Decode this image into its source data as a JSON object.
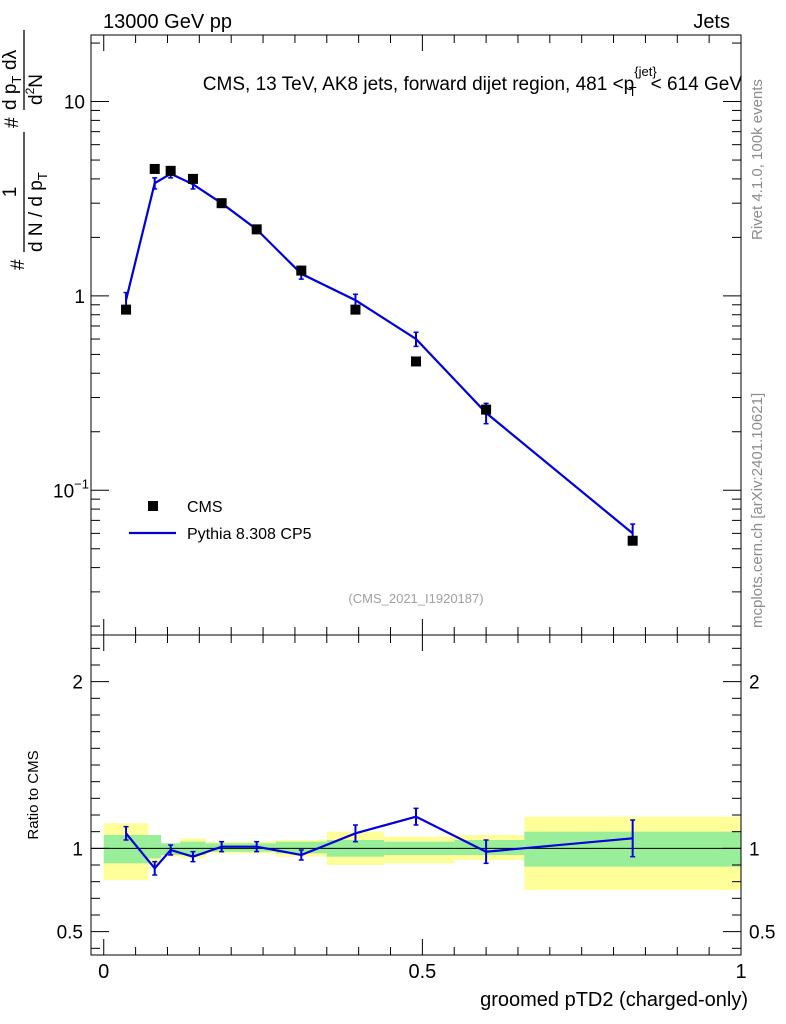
{
  "header": {
    "energy_label": "13000 GeV pp",
    "category_label": "Jets"
  },
  "side_text": {
    "rivet_label": "Rivet 4.1.0,  100k events",
    "mcplots_label": "mcplots.cern.ch [arXiv:2401.10621]"
  },
  "colors": {
    "mc_line": "#0000dd",
    "band_outer": "#ffff99",
    "band_inner": "#99ee99",
    "data_marker": "#000000"
  },
  "chart_data": [
    {
      "type": "scatter",
      "panel": "main",
      "title": "CMS, 13 TeV, AK8 jets, forward dijet region, 481 <p_T^{jet}< 614 GeV",
      "title_parts": {
        "before": "CMS, 13 TeV, AK8 jets, forward dijet region, 481 <p",
        "sup": "{jet}",
        "sub": "T",
        "after": "< 614 GeV"
      },
      "ylabel": "1/(dN/dp_T) d²N/(dp_T dλ)",
      "ylabel_parts": {
        "frac_num": "1",
        "frac_den": "d N / d p",
        "frac_den_sub": "T",
        "d2": "d",
        "d2_sup": "2",
        "d2_N": "N",
        "dp": "d p",
        "dp_sub": "T",
        "dlambda": "dλ",
        "hash": "#"
      },
      "yscale": "log",
      "ylim": [
        0.018,
        22
      ],
      "xlim": [
        -0.02,
        1.0
      ],
      "yticks": [
        {
          "value": 0.1,
          "label": "10",
          "sup": "−1"
        },
        {
          "value": 1,
          "label": "1"
        },
        {
          "value": 10,
          "label": "10"
        }
      ],
      "analysis_tag": "(CMS_2021_I1920187)",
      "legend": [
        {
          "name": "CMS",
          "marker": "square"
        },
        {
          "name": "Pythia 8.308 CP5",
          "marker": "line"
        }
      ],
      "legend_position": "bottom-left",
      "series": [
        {
          "name": "CMS",
          "x": [
            0.035,
            0.08,
            0.105,
            0.14,
            0.185,
            0.24,
            0.31,
            0.395,
            0.49,
            0.6,
            0.83
          ],
          "values": [
            0.85,
            4.5,
            4.4,
            4.0,
            3.0,
            2.2,
            1.35,
            0.85,
            0.46,
            0.26,
            0.055
          ]
        },
        {
          "name": "Pythia 8.308 CP5",
          "x": [
            0.035,
            0.08,
            0.105,
            0.14,
            0.185,
            0.24,
            0.31,
            0.395,
            0.49,
            0.6,
            0.83
          ],
          "values": [
            0.95,
            3.8,
            4.25,
            3.75,
            3.0,
            2.2,
            1.3,
            0.95,
            0.6,
            0.25,
            0.06
          ],
          "err_low": [
            0.09,
            0.25,
            0.2,
            0.2,
            0.1,
            0.08,
            0.08,
            0.07,
            0.05,
            0.03,
            0.007
          ],
          "err_high": [
            0.09,
            0.25,
            0.2,
            0.2,
            0.1,
            0.08,
            0.08,
            0.07,
            0.05,
            0.03,
            0.007
          ]
        }
      ]
    },
    {
      "type": "line",
      "panel": "ratio",
      "xlabel": "groomed pTD2 (charged-only)",
      "ylabel": "Ratio to CMS",
      "ylim": [
        0.36,
        2.28
      ],
      "xlim": [
        -0.02,
        1.0
      ],
      "xticks": [
        {
          "value": 0,
          "label": "0"
        },
        {
          "value": 0.5,
          "label": "0.5"
        },
        {
          "value": 1,
          "label": "1"
        }
      ],
      "yticks": [
        {
          "value": 0.5,
          "label": "0.5"
        },
        {
          "value": 1,
          "label": "1"
        },
        {
          "value": 2,
          "label": "2"
        }
      ],
      "reference_line": 1,
      "bands": [
        {
          "x0": 0.0,
          "x1": 0.07,
          "inner": [
            0.91,
            1.08
          ],
          "outer": [
            0.81,
            1.15
          ]
        },
        {
          "x0": 0.07,
          "x1": 0.09,
          "inner": [
            0.94,
            1.08
          ],
          "outer": [
            0.9,
            1.08
          ]
        },
        {
          "x0": 0.09,
          "x1": 0.12,
          "inner": [
            0.96,
            1.03
          ],
          "outer": [
            0.95,
            1.03
          ]
        },
        {
          "x0": 0.12,
          "x1": 0.16,
          "inner": [
            0.96,
            1.04
          ],
          "outer": [
            0.94,
            1.06
          ]
        },
        {
          "x0": 0.16,
          "x1": 0.21,
          "inner": [
            0.98,
            1.03
          ],
          "outer": [
            0.97,
            1.04
          ]
        },
        {
          "x0": 0.21,
          "x1": 0.27,
          "inner": [
            0.98,
            1.03
          ],
          "outer": [
            0.97,
            1.04
          ]
        },
        {
          "x0": 0.27,
          "x1": 0.35,
          "inner": [
            0.97,
            1.04
          ],
          "outer": [
            0.95,
            1.05
          ]
        },
        {
          "x0": 0.35,
          "x1": 0.44,
          "inner": [
            0.95,
            1.05
          ],
          "outer": [
            0.9,
            1.1
          ]
        },
        {
          "x0": 0.44,
          "x1": 0.55,
          "inner": [
            0.96,
            1.04
          ],
          "outer": [
            0.91,
            1.07
          ]
        },
        {
          "x0": 0.55,
          "x1": 0.66,
          "inner": [
            0.96,
            1.05
          ],
          "outer": [
            0.93,
            1.08
          ]
        },
        {
          "x0": 0.66,
          "x1": 1.0,
          "inner": [
            0.89,
            1.1
          ],
          "outer": [
            0.75,
            1.19
          ]
        }
      ],
      "series": [
        {
          "name": "Pythia 8.308 CP5",
          "x": [
            0.035,
            0.08,
            0.105,
            0.14,
            0.185,
            0.24,
            0.31,
            0.395,
            0.49,
            0.6,
            0.83
          ],
          "values": [
            1.09,
            0.88,
            0.99,
            0.95,
            1.01,
            1.01,
            0.96,
            1.09,
            1.19,
            0.98,
            1.06
          ],
          "err_low": [
            0.04,
            0.04,
            0.03,
            0.03,
            0.03,
            0.03,
            0.03,
            0.05,
            0.05,
            0.07,
            0.11
          ],
          "err_high": [
            0.04,
            0.04,
            0.03,
            0.03,
            0.03,
            0.03,
            0.03,
            0.05,
            0.05,
            0.07,
            0.11
          ]
        }
      ]
    }
  ]
}
